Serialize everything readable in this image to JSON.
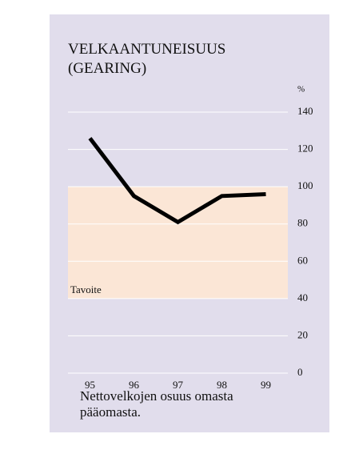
{
  "chart_data": {
    "type": "line",
    "title": "VELKAANTUNEISUUS (GEARING)",
    "y_unit": "%",
    "categories": [
      "95",
      "96",
      "97",
      "98",
      "99"
    ],
    "series": [
      {
        "values": [
          126,
          95,
          81,
          95,
          96
        ],
        "color": "#000000"
      }
    ],
    "target_range": [
      40,
      100
    ],
    "target_label": "Tavoite",
    "target_color": "#fbe6d6",
    "ylim": [
      0,
      140
    ],
    "yticks": [
      0,
      20,
      40,
      60,
      80,
      100,
      120,
      140
    ],
    "grid": true,
    "caption": "Nettovelkojen osuus omasta pääomasta."
  }
}
